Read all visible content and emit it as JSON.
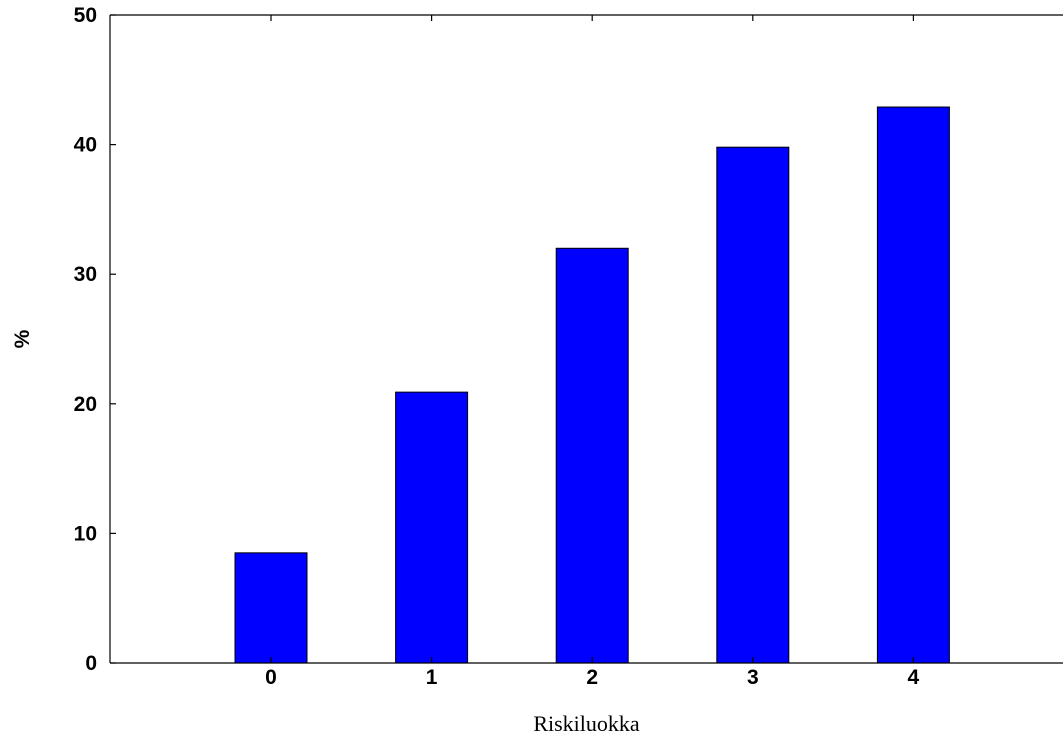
{
  "chart_data": {
    "type": "bar",
    "categories": [
      "0",
      "1",
      "2",
      "3",
      "4"
    ],
    "values": [
      8.5,
      20.9,
      32.0,
      39.8,
      42.9
    ],
    "title": "",
    "xlabel": "Riskiluokka",
    "ylabel": "%",
    "ylim": [
      0,
      50
    ],
    "yticks": [
      "0",
      "10",
      "20",
      "30",
      "40",
      "50"
    ],
    "bar_color": "#0000FF",
    "bar_stroke": "#000000",
    "grid": false,
    "legend": "none"
  }
}
